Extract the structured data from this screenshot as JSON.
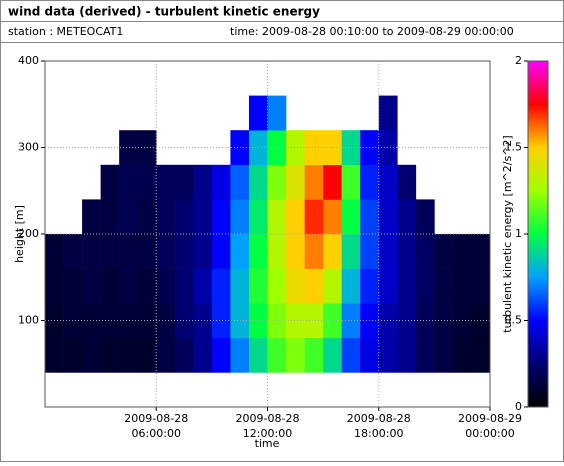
{
  "chart_data": {
    "type": "heatmap",
    "title": "wind data (derived) - turbulent kinetic energy",
    "station": "station : METEOCAT1",
    "time_range": "time: 2009-08-28 00:10:00 to 2009-08-29 00:00:00",
    "xlabel": "time",
    "ylabel": "height [m]",
    "colorbar_label": "turbulent kinetic energy [m^2/s^2]",
    "x": [
      0.5,
      1.5,
      2.5,
      3.5,
      4.5,
      5.5,
      6.5,
      7.5,
      8.5,
      9.5,
      10.5,
      11.5,
      12.5,
      13.5,
      14.5,
      15.5,
      16.5,
      17.5,
      18.5,
      19.5,
      20.5,
      21.5,
      22.5,
      23.5
    ],
    "y": [
      60,
      100,
      140,
      180,
      220,
      260,
      300,
      340
    ],
    "values": [
      [
        0.1,
        0.1,
        0.12,
        0.12,
        null,
        null,
        null,
        null
      ],
      [
        0.1,
        0.12,
        0.12,
        0.15,
        null,
        null,
        null,
        null
      ],
      [
        0.12,
        0.12,
        0.15,
        0.15,
        0.15,
        null,
        null,
        null
      ],
      [
        0.1,
        0.12,
        0.12,
        0.15,
        0.15,
        0.15,
        null,
        null
      ],
      [
        0.1,
        0.12,
        0.15,
        0.15,
        0.18,
        0.18,
        0.15,
        null
      ],
      [
        0.1,
        0.12,
        0.12,
        0.15,
        0.15,
        0.18,
        0.15,
        null
      ],
      [
        0.15,
        0.15,
        0.18,
        0.2,
        0.2,
        0.2,
        null,
        null
      ],
      [
        0.2,
        0.25,
        0.25,
        0.25,
        0.25,
        0.2,
        null,
        null
      ],
      [
        0.3,
        0.3,
        0.35,
        0.3,
        0.3,
        0.3,
        null,
        null
      ],
      [
        0.5,
        0.55,
        0.55,
        0.5,
        0.5,
        0.45,
        null,
        null
      ],
      [
        0.7,
        0.8,
        0.8,
        0.75,
        0.7,
        0.65,
        0.5,
        null
      ],
      [
        0.9,
        1.0,
        1.05,
        1.0,
        0.95,
        0.9,
        0.8,
        0.5
      ],
      [
        1.1,
        1.2,
        1.25,
        1.3,
        1.3,
        1.2,
        1.0,
        0.7
      ],
      [
        1.2,
        1.3,
        1.45,
        1.5,
        1.5,
        1.4,
        1.3,
        null
      ],
      [
        1.1,
        1.3,
        1.5,
        1.6,
        1.7,
        1.6,
        1.5,
        null
      ],
      [
        0.9,
        1.1,
        1.3,
        1.5,
        1.6,
        1.75,
        1.5,
        null
      ],
      [
        0.6,
        0.7,
        0.8,
        0.9,
        1.0,
        1.1,
        0.9,
        null
      ],
      [
        0.45,
        0.5,
        0.55,
        0.6,
        0.6,
        0.55,
        0.5,
        null
      ],
      [
        0.35,
        0.35,
        0.4,
        0.4,
        0.4,
        0.4,
        0.35,
        0.3
      ],
      [
        0.3,
        0.3,
        0.3,
        0.3,
        0.3,
        0.25,
        null,
        null
      ],
      [
        0.2,
        0.2,
        0.22,
        0.22,
        0.2,
        null,
        null,
        null
      ],
      [
        0.15,
        0.15,
        0.15,
        0.15,
        null,
        null,
        null,
        null
      ],
      [
        0.1,
        0.12,
        0.12,
        0.12,
        null,
        null,
        null,
        null
      ],
      [
        0.1,
        0.1,
        0.12,
        0.12,
        null,
        null,
        null,
        null
      ]
    ],
    "xlim": [
      0,
      24
    ],
    "xticks": [
      {
        "value": 6,
        "label": "2009-08-28 06:00:00"
      },
      {
        "value": 12,
        "label": "2009-08-28 12:00:00"
      },
      {
        "value": 18,
        "label": "2009-08-28 18:00:00"
      },
      {
        "value": 24,
        "label": "2009-08-29 00:00:00"
      }
    ],
    "ylim": [
      0,
      400
    ],
    "yticks": [
      100,
      200,
      300,
      400
    ],
    "clim": [
      0,
      2
    ],
    "cticks": [
      0,
      0.5,
      1,
      1.5,
      2
    ],
    "colormap": [
      "#000000",
      "#000070",
      "#0000ff",
      "#00a0ff",
      "#00ff40",
      "#a0ff00",
      "#ffd000",
      "#ff0000",
      "#ff00ff"
    ],
    "grid": true
  }
}
